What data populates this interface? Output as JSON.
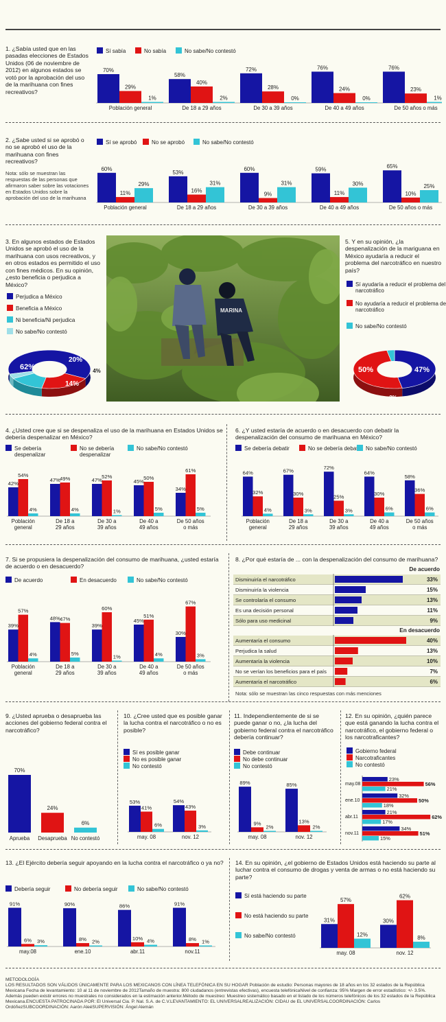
{
  "colors": {
    "blue": "#1515a3",
    "red": "#e01414",
    "cyan": "#33c4d6",
    "dkred": "#8c1010",
    "band": "#e4e6c6"
  },
  "legend3": {
    "si_sabia": "Sí sabía",
    "no_sabia": "No sabía",
    "ns": "No sabe/No contestó"
  },
  "q1": {
    "title": "1. ¿Sabía usted que en las pasadas elecciones de Estados Unidos (06 de noviembre de 2012) en algunos estados se votó por la aprobación del uso de la marihuana con fines recreativos?",
    "legend": [
      "Sí sabía",
      "No sabía",
      "No sabe/No contestó"
    ]
  },
  "q2": {
    "title": "2. ¿Sabe usted si se aprobó o no se aprobó el uso de la marihuana con fines recreativos?",
    "note": "Nota: sólo se muestran las respuestas de las personas que afirmaron saber sobre las votaciones en Estados Unidos sobre la aprobación del uso de la marihuana",
    "legend": [
      "Sí se aprobó",
      "No se aprobó",
      "No sabe/No contestó"
    ]
  },
  "q3": {
    "title": "3. En algunos estados de Estados Unidos se aprobó el uso de la marihuana con usos recreativos, y en otros estados es permitido el uso con fines médicos. En su opinión, ¿esto beneficia o perjudica a México?",
    "legend": [
      "Perjudica a México",
      "Beneficia a México",
      "Ni beneficia/Ni perjudica",
      "No sabe/No contestó"
    ]
  },
  "q5": {
    "title": "5. Y en su opinión, ¿la despenalización de la mariguana en México ayudaría a reducir el problema del narcotráfico en nuestro país?",
    "legend": [
      "Sí ayudaría a reducir el problema del narcotráfico",
      "No ayudaría a reducir el problema del narcotráfico",
      "No sabe/No contestó"
    ]
  },
  "photo": {
    "label": "MARINA"
  },
  "q4": {
    "title": "4. ¿Usted cree que si se despenaliza el uso de la marihuana en Estados Unidos se debería despenalizar en México?",
    "legend": [
      "Se debería despenalizar",
      "No se debería despenalizar",
      "No sabe/No contestó"
    ]
  },
  "q6": {
    "title": "6. ¿Y usted estaría de acuerdo o en desacuerdo con debatir la despenalización del consumo de marihuana en México?",
    "legend": [
      "Se debería debatir",
      "No se debería debatir",
      "No sabe/No contestó"
    ]
  },
  "q7": {
    "title": "7. Si se propusiera la despenalización del consumo de marihuana, ¿usted estaría de acuerdo o en desacuerdo?",
    "legend": [
      "De acuerdo",
      "En desacuerdo",
      "No sabe/No contestó"
    ]
  },
  "q8": {
    "title": "8. ¿Por qué estaría de ... con la despenalización del consumo de marihuana?",
    "head1": "De acuerdo",
    "head2": "En desacuerdo",
    "note": "Nota: sólo se muestran las cinco respuestas con más menciones"
  },
  "q9": {
    "title": "9. ¿Usted aprueba o desaprueba las acciones del gobierno federal contra el narcotráfico?"
  },
  "q10": {
    "title": "10. ¿Cree usted que es posible ganar la lucha contra el narcotráfico o no es posible?",
    "legend": [
      "Sí es posible ganar",
      "No es posible ganar",
      "No contestó"
    ]
  },
  "q11": {
    "title": "11. Independientemente de si se puede ganar o no, ¿la lucha del gobierno federal contra el narcotráfico debería continuar?",
    "legend": [
      "Debe continuar",
      "No debe continuar",
      "No contestó"
    ]
  },
  "q12": {
    "title": "12. En su opinión, ¿quién parece que está ganando la lucha contra el narcotráfico, el gobierno federal o los narcotraficantes?",
    "legend": [
      "Gobierno federal",
      "Narcotraficantes",
      "No contestó"
    ]
  },
  "q13": {
    "title": "13. ¿El Ejército debería seguir apoyando en la lucha contra el narcotráfico o ya no?",
    "legend": [
      "Debería seguir",
      "No debería seguir",
      "No sabe/No contestó"
    ]
  },
  "q14": {
    "title": "14. En su opinión, ¿el gobierno de Estados Unidos está haciendo su parte al luchar contra el consumo de drogas y venta de armas o no está haciendo su parte?",
    "legend": [
      "Sí está haciendo su parte",
      "No está haciendo su parte",
      "No sabe/No contestó"
    ]
  },
  "meta": {
    "heading": "METODOLOGÍA",
    "body": "LOS RESULTADOS SON VÁLIDOS ÚNICAMENTE PARA LOS MEXICANOS CON LÍNEA TELEFÓNICA EN SU HOGAR Población de estudio:  Personas mayores de 18 años en los 32 estados de la República Mexicana Fecha de levantamiento: 10 al 11 de noviembre de 2012Tamaño de muestra: 800 ciudadanos (entrevistas efectivas), encuesta telefónicaNivel de confianza:  95% Margen de error estadístico: +/- 3.5%. Además pueden existir errores no muestrales no considerados en la estimación anterior.Método de muestreo:  Muestreo sistemático basado en el listado de los números telefónicos de los 32 estados de la República Mexicana.ENCUESTA PATROCINADA POR: El Universal Cia. P. Nal. S.A. de C.V.LEVANTAMIENTO: EL UNIVERSALREALIZACIÓN: CIDAU de EL UNIVERSALCOORDINACIÓN: Carlos OrdóñezSUBCOORDINACIÓN: Aarón AleéSUPERVISIÓN: Ángel Alemán"
  },
  "chart_data": [
    {
      "id": "q1",
      "type": "bar",
      "categories": [
        "Población general",
        "De 18 a 29 años",
        "De 30 a 39 años",
        "De 40 a 49 años",
        "De 50 años o más"
      ],
      "series": [
        {
          "name": "Sí sabía",
          "values": [
            70,
            58,
            72,
            76,
            76
          ]
        },
        {
          "name": "No sabía",
          "values": [
            29,
            40,
            28,
            24,
            23
          ]
        },
        {
          "name": "No sabe/No contestó",
          "values": [
            1,
            2,
            0,
            0,
            1
          ]
        }
      ]
    },
    {
      "id": "q2",
      "type": "bar",
      "categories": [
        "Población general",
        "De 18 a 29 años",
        "De 30 a 39 años",
        "De 40 a 49 años",
        "De 50 años o más"
      ],
      "series": [
        {
          "name": "Sí se aprobó",
          "values": [
            60,
            53,
            60,
            59,
            65
          ]
        },
        {
          "name": "No se aprobó",
          "values": [
            11,
            16,
            9,
            11,
            10
          ]
        },
        {
          "name": "No sabe/No contestó",
          "values": [
            29,
            31,
            31,
            30,
            25
          ]
        }
      ]
    },
    {
      "id": "q3",
      "type": "pie",
      "labels": [
        "Perjudica a México",
        "Beneficia a México",
        "Ni beneficia/Ni perjudica",
        "No sabe/No contestó"
      ],
      "values": [
        62,
        20,
        14,
        4
      ]
    },
    {
      "id": "q5",
      "type": "pie",
      "labels": [
        "Sí ayudaría a reducir el problema del narcotráfico",
        "No ayudaría a reducir el problema del narcotráfico",
        "No sabe/No contestó"
      ],
      "values": [
        47,
        50,
        3
      ]
    },
    {
      "id": "q4",
      "type": "bar",
      "categories": [
        "Población general",
        "De 18 a 29 años",
        "De 30 a 39 años",
        "De 40 a 49 años",
        "De 50 años o más"
      ],
      "series": [
        {
          "name": "Se debería despenalizar",
          "values": [
            42,
            47,
            47,
            45,
            34
          ]
        },
        {
          "name": "No se debería despenalizar",
          "values": [
            54,
            49,
            52,
            50,
            61
          ]
        },
        {
          "name": "No sabe/No contestó",
          "values": [
            4,
            4,
            1,
            5,
            5
          ]
        }
      ]
    },
    {
      "id": "q6",
      "type": "bar",
      "categories": [
        "Población general",
        "De 18 a 29 años",
        "De 30 a 39 años",
        "De 40 a 49 años",
        "De 50 años o más"
      ],
      "series": [
        {
          "name": "Se debería debatir",
          "values": [
            64,
            67,
            72,
            64,
            58
          ]
        },
        {
          "name": "No se debería debatir",
          "values": [
            32,
            30,
            25,
            30,
            36
          ]
        },
        {
          "name": "No sabe/No contestó",
          "values": [
            4,
            3,
            3,
            6,
            6
          ]
        }
      ]
    },
    {
      "id": "q7",
      "type": "bar",
      "categories": [
        "Población general",
        "De 18 a 29 años",
        "De 30 a 39 años",
        "De 40 a 49 años",
        "De 50 años o más"
      ],
      "series": [
        {
          "name": "De acuerdo",
          "values": [
            39,
            48,
            39,
            45,
            30
          ]
        },
        {
          "name": "En desacuerdo",
          "values": [
            57,
            47,
            60,
            51,
            67
          ]
        },
        {
          "name": "No sabe/No contestó",
          "values": [
            4,
            5,
            1,
            4,
            3
          ]
        }
      ]
    },
    {
      "id": "q8a",
      "type": "bar",
      "orientation": "horizontal",
      "categories": [
        "Disminuiría el narcotráfico",
        "Disminuiría la violencia",
        "Se controlaría el consumo",
        "Es una decisión personal",
        "Sólo para uso medicinal"
      ],
      "values": [
        33,
        15,
        13,
        11,
        9
      ]
    },
    {
      "id": "q8b",
      "type": "bar",
      "orientation": "horizontal",
      "categories": [
        "Aumentaría el consumo",
        "Perjudica la salud",
        "Aumentaría la violencia",
        "No se verían los beneficios para el país",
        "Aumentaría el narcotráfico"
      ],
      "values": [
        40,
        13,
        10,
        7,
        6
      ]
    },
    {
      "id": "q9",
      "type": "bar",
      "categories": [
        "Aprueba",
        "Desaprueba",
        "No contestó"
      ],
      "values": [
        70,
        24,
        6
      ]
    },
    {
      "id": "q10",
      "type": "bar",
      "categories": [
        "may. 08",
        "nov. 12"
      ],
      "series": [
        {
          "name": "Sí es posible ganar",
          "values": [
            53,
            54
          ]
        },
        {
          "name": "No es posible ganar",
          "values": [
            41,
            43
          ]
        },
        {
          "name": "No contestó",
          "values": [
            6,
            3
          ]
        }
      ]
    },
    {
      "id": "q11",
      "type": "bar",
      "categories": [
        "may. 08",
        "nov. 12"
      ],
      "series": [
        {
          "name": "Debe continuar",
          "values": [
            89,
            85
          ]
        },
        {
          "name": "No debe continuar",
          "values": [
            9,
            13
          ]
        },
        {
          "name": "No contestó",
          "values": [
            2,
            2
          ]
        }
      ]
    },
    {
      "id": "q12",
      "type": "bar",
      "orientation": "horizontal",
      "categories": [
        "may.08",
        "ene.10",
        "abr.11",
        "nov.11"
      ],
      "series": [
        {
          "name": "Gobierno federal",
          "values": [
            23,
            32,
            21,
            34
          ]
        },
        {
          "name": "Narcotraficantes",
          "values": [
            56,
            50,
            62,
            51
          ]
        },
        {
          "name": "No contestó",
          "values": [
            21,
            18,
            17,
            15
          ]
        }
      ]
    },
    {
      "id": "q13",
      "type": "bar",
      "categories": [
        "may.08",
        "ene.10",
        "abr.11",
        "nov.11"
      ],
      "series": [
        {
          "name": "Debería seguir",
          "values": [
            91,
            90,
            86,
            91
          ]
        },
        {
          "name": "No debería seguir",
          "values": [
            6,
            8,
            10,
            8
          ]
        },
        {
          "name": "No sabe/No contestó",
          "values": [
            3,
            2,
            4,
            1
          ]
        }
      ]
    },
    {
      "id": "q14",
      "type": "bar",
      "categories": [
        "may. 08",
        "nov. 12"
      ],
      "series": [
        {
          "name": "Sí está haciendo su parte",
          "values": [
            31,
            30
          ]
        },
        {
          "name": "No está haciendo su parte",
          "values": [
            57,
            62
          ]
        },
        {
          "name": "No sabe/No contestó",
          "values": [
            12,
            8
          ]
        }
      ]
    }
  ]
}
